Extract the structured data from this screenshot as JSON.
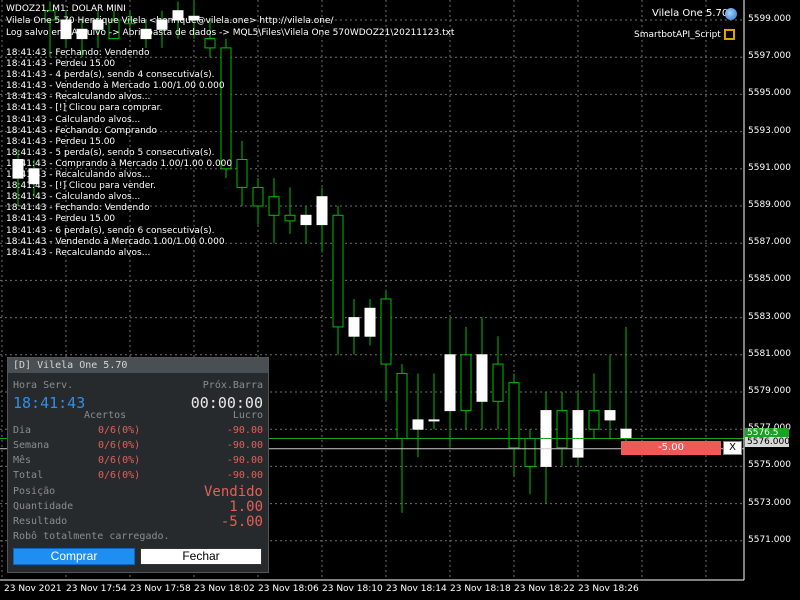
{
  "chart": {
    "symbol_line": "WDOZ21, M1:  DOLAR MINI",
    "author_line": "Vilela One 5.70 Henrique Vilela <henrique@vilela.one> http://vilela.one/",
    "logpath_line": "Log salvo em: Arquivo -> Abrir pasta de dados -> MQL5\\Files\\Vilela One 570WDOZ21\\20211123.txt",
    "top_right_label": "Vilela One 5.70",
    "script_label": "SmartbotAPI_Script",
    "bid_price": "5576.5",
    "ask_price": "5576.000",
    "pnl_value": "-5.00",
    "close_x": "X",
    "colors": {
      "background": "#000000",
      "candle_up": "#ffffff",
      "wick": "#00c000",
      "grid": "#6e6e6e",
      "bid_line": "#1aa320",
      "pnl_bg": "#ee5a56"
    },
    "price_labels": [
      "5599.000",
      "5597.000",
      "5595.000",
      "5593.000",
      "5591.000",
      "5589.000",
      "5587.000",
      "5585.000",
      "5583.000",
      "5581.000",
      "5579.000",
      "5577.000",
      "5575.000",
      "5573.000",
      "5571.000"
    ],
    "time_labels": [
      "23 Nov 2021",
      "23 Nov 17:54",
      "23 Nov 17:58",
      "23 Nov 18:02",
      "23 Nov 18:06",
      "23 Nov 18:10",
      "23 Nov 18:14",
      "23 Nov 18:18",
      "23 Nov 18:22",
      "23 Nov 18:26"
    ],
    "log_lines": [
      "18:41:43 - Fechando: Vendendo",
      "18:41:43 - Perdeu 15.00",
      "18:41:43 - 4 perda(s), sendo 4 consecutiva(s).",
      "18:41:43 - Vendendo à Mercado 1.00/1.00 0.000",
      "18:41:43 - Recalculando alvos...",
      "18:41:43 - [!] Clicou para comprar.",
      "18:41:43 - Calculando alvos...",
      "18:41:43 - Fechando: Comprando",
      "18:41:43 - Perdeu 15.00",
      "18:41:43 - 5 perda(s), sendo 5 consecutiva(s).",
      "18:41:43 - Comprando à Mercado 1.00/1.00 0.000",
      "18:41:43 - Recalculando alvos...",
      "18:41:43 - [!] Clicou para vender.",
      "18:41:43 - Calculando alvos...",
      "18:41:43 - Fechando: Vendendo",
      "18:41:43 - Perdeu 15.00",
      "18:41:43 - 6 perda(s), sendo 6 consecutiva(s).",
      "18:41:43 - Vendendo à Mercado 1.00/1.00 0.000",
      "18:41:43 - Recalculando alvos..."
    ]
  },
  "chart_data": {
    "type": "candlestick",
    "symbol": "WDOZ21",
    "timeframe": "M1",
    "ylim": [
      5570,
      5600
    ],
    "current_bid": 5576.5,
    "current_ask": 5576.0,
    "candles": [
      {
        "o": 5590.5,
        "h": 5592.0,
        "l": 5589.0,
        "c": 5591.5
      },
      {
        "o": 5590.2,
        "h": 5591.5,
        "l": 5589.5,
        "c": 5591.0
      },
      {
        "o": 5599.5,
        "h": 5600.0,
        "l": 5597.0,
        "c": 5599.0
      },
      {
        "o": 5598.0,
        "h": 5599.5,
        "l": 5597.5,
        "c": 5599.0
      },
      {
        "o": 5598.0,
        "h": 5599.0,
        "l": 5597.0,
        "c": 5598.5
      },
      {
        "o": 5598.5,
        "h": 5599.5,
        "l": 5597.5,
        "c": 5599.0
      },
      {
        "o": 5599.0,
        "h": 5599.5,
        "l": 5598.0,
        "c": 5598.0
      },
      {
        "o": 5599.0,
        "h": 5599.5,
        "l": 5598.5,
        "c": 5598.8
      },
      {
        "o": 5598.0,
        "h": 5599.0,
        "l": 5597.5,
        "c": 5598.5
      },
      {
        "o": 5598.5,
        "h": 5599.5,
        "l": 5597.5,
        "c": 5599.0
      },
      {
        "o": 5599.0,
        "h": 5600.0,
        "l": 5598.0,
        "c": 5599.5
      },
      {
        "o": 5599.0,
        "h": 5600.0,
        "l": 5598.0,
        "c": 5599.2
      },
      {
        "o": 5598.0,
        "h": 5599.0,
        "l": 5597.0,
        "c": 5597.5
      },
      {
        "o": 5597.5,
        "h": 5598.0,
        "l": 5590.5,
        "c": 5591.0
      },
      {
        "o": 5591.5,
        "h": 5592.5,
        "l": 5589.0,
        "c": 5590.0
      },
      {
        "o": 5590.0,
        "h": 5590.5,
        "l": 5588.0,
        "c": 5589.0
      },
      {
        "o": 5589.5,
        "h": 5590.5,
        "l": 5587.0,
        "c": 5588.5
      },
      {
        "o": 5588.5,
        "h": 5590.0,
        "l": 5587.5,
        "c": 5588.2
      },
      {
        "o": 5588.0,
        "h": 5589.0,
        "l": 5587.0,
        "c": 5588.5
      },
      {
        "o": 5588.0,
        "h": 5590.0,
        "l": 5586.5,
        "c": 5589.5
      },
      {
        "o": 5588.5,
        "h": 5589.0,
        "l": 5581.0,
        "c": 5582.5
      },
      {
        "o": 5582.0,
        "h": 5584.0,
        "l": 5581.0,
        "c": 5583.0
      },
      {
        "o": 5582.0,
        "h": 5584.0,
        "l": 5581.5,
        "c": 5583.5
      },
      {
        "o": 5584.0,
        "h": 5584.5,
        "l": 5578.5,
        "c": 5580.5
      },
      {
        "o": 5580.0,
        "h": 5580.5,
        "l": 5572.5,
        "c": 5576.5
      },
      {
        "o": 5577.0,
        "h": 5580.0,
        "l": 5575.5,
        "c": 5577.5
      },
      {
        "o": 5577.5,
        "h": 5580.0,
        "l": 5577.0,
        "c": 5577.5
      },
      {
        "o": 5578.0,
        "h": 5583.0,
        "l": 5576.0,
        "c": 5581.0
      },
      {
        "o": 5581.0,
        "h": 5582.5,
        "l": 5577.0,
        "c": 5578.0
      },
      {
        "o": 5578.5,
        "h": 5583.0,
        "l": 5577.0,
        "c": 5581.0
      },
      {
        "o": 5580.5,
        "h": 5582.0,
        "l": 5577.0,
        "c": 5578.5
      },
      {
        "o": 5579.5,
        "h": 5580.0,
        "l": 5574.5,
        "c": 5576.0
      },
      {
        "o": 5576.5,
        "h": 5577.0,
        "l": 5573.5,
        "c": 5575.0
      },
      {
        "o": 5575.0,
        "h": 5579.0,
        "l": 5573.0,
        "c": 5578.0
      },
      {
        "o": 5578.0,
        "h": 5579.0,
        "l": 5575.0,
        "c": 5576.0
      },
      {
        "o": 5575.5,
        "h": 5579.0,
        "l": 5575.0,
        "c": 5578.0
      },
      {
        "o": 5578.0,
        "h": 5580.0,
        "l": 5576.5,
        "c": 5577.0
      },
      {
        "o": 5577.5,
        "h": 5581.0,
        "l": 5576.5,
        "c": 5578.0
      },
      {
        "o": 5576.5,
        "h": 5582.5,
        "l": 5576.0,
        "c": 5577.0
      }
    ]
  },
  "panel": {
    "title": "[D] Vilela One 5.70",
    "hora_label": "Hora Serv.",
    "hora_value": "18:41:43",
    "prox_label": "Próx.Barra",
    "prox_value": "00:00:00",
    "col_acertos": "Acertos",
    "col_lucro": "Lucro",
    "rows": [
      {
        "label": "Dia",
        "acertos": "0/6(0%)",
        "lucro": "-90.00"
      },
      {
        "label": "Semana",
        "acertos": "0/6(0%)",
        "lucro": "-90.00"
      },
      {
        "label": "Mês",
        "acertos": "0/6(0%)",
        "lucro": "-90.00"
      },
      {
        "label": "Total",
        "acertos": "0/6(0%)",
        "lucro": "-90.00"
      }
    ],
    "posicao_label": "Posição",
    "posicao_value": "Vendido",
    "quantidade_label": "Quantidade",
    "quantidade_value": "1.00",
    "resultado_label": "Resultado",
    "resultado_value": "-5.00",
    "status": "Robô totalmente carregado.",
    "buy_label": "Comprar",
    "close_label": "Fechar"
  }
}
